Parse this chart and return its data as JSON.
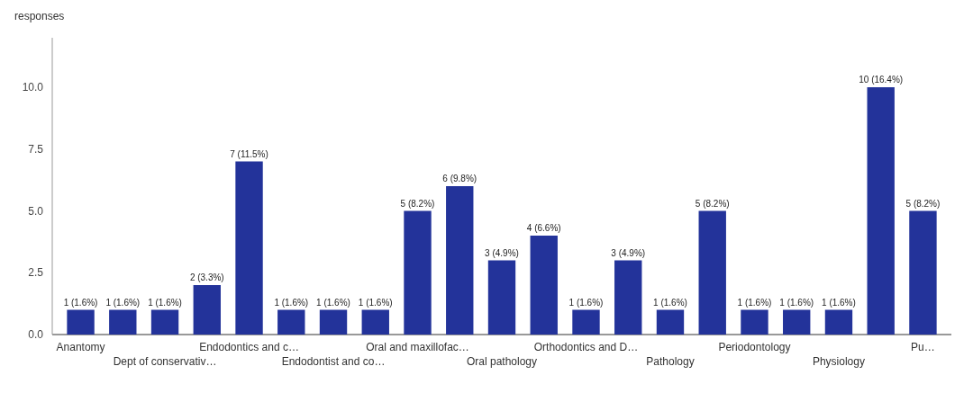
{
  "chart_data": {
    "type": "bar",
    "ylabel": "responses",
    "categories": [
      "Anantomy",
      null,
      "Dept of conservativ…",
      null,
      "Endodontics and c…",
      null,
      "Endodontist and co…",
      null,
      "Oral and maxillofac…",
      null,
      "Oral pathology",
      null,
      "Orthodontics and D…",
      null,
      "Pathology",
      null,
      "Periodontology",
      null,
      "Physiology",
      null,
      "Pu…"
    ],
    "values": [
      1,
      1,
      1,
      2,
      7,
      1,
      1,
      1,
      5,
      6,
      3,
      4,
      1,
      3,
      1,
      5,
      1,
      1,
      1,
      10,
      5
    ],
    "value_labels": [
      "1 (1.6%)",
      "1 (1.6%)",
      "1 (1.6%)",
      "2 (3.3%)",
      "7 (11.5%)",
      "1 (1.6%)",
      "1 (1.6%)",
      "1 (1.6%)",
      "5 (8.2%)",
      "6 (9.8%)",
      "3 (4.9%)",
      "4 (6.6%)",
      "1 (1.6%)",
      "3 (4.9%)",
      "1 (1.6%)",
      "5 (8.2%)",
      "1 (1.6%)",
      "1 (1.6%)",
      "1 (1.6%)",
      "10 (16.4%)",
      "5 (8.2%)"
    ],
    "color": "#23339a",
    "ylim": [
      0,
      12
    ],
    "yticks": [
      {
        "value": 0,
        "label": "0.0"
      },
      {
        "value": 2.5,
        "label": "2.5"
      },
      {
        "value": 5,
        "label": "5.0"
      },
      {
        "value": 7.5,
        "label": "7.5"
      },
      {
        "value": 10,
        "label": "10.0"
      }
    ],
    "grid": false
  }
}
